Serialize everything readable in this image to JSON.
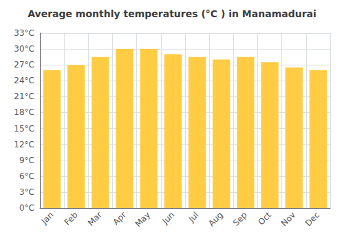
{
  "chart_data": {
    "type": "bar",
    "title": "Average monthly temperatures (°C ) in Manamadurai",
    "categories": [
      "Jan",
      "Feb",
      "Mar",
      "Apr",
      "May",
      "Jun",
      "Jul",
      "Aug",
      "Sep",
      "Oct",
      "Nov",
      "Dec"
    ],
    "values": [
      26.0,
      27.0,
      28.5,
      30.0,
      30.0,
      29.0,
      28.5,
      28.0,
      28.5,
      27.5,
      26.5,
      26.0
    ],
    "color": "#FFCC44",
    "ylim": [
      0,
      33
    ],
    "yticks": [
      {
        "value": 0,
        "label": "0°C"
      },
      {
        "value": 3,
        "label": "3°C"
      },
      {
        "value": 6,
        "label": "6°C"
      },
      {
        "value": 9,
        "label": "9°C"
      },
      {
        "value": 12,
        "label": "12°C"
      },
      {
        "value": 15,
        "label": "15°C"
      },
      {
        "value": 18,
        "label": "18°C"
      },
      {
        "value": 21,
        "label": "21°C"
      },
      {
        "value": 24,
        "label": "24°C"
      },
      {
        "value": 27,
        "label": "27°C"
      },
      {
        "value": 30,
        "label": "30°C"
      },
      {
        "value": 33,
        "label": "33°C"
      }
    ],
    "grid": true
  }
}
